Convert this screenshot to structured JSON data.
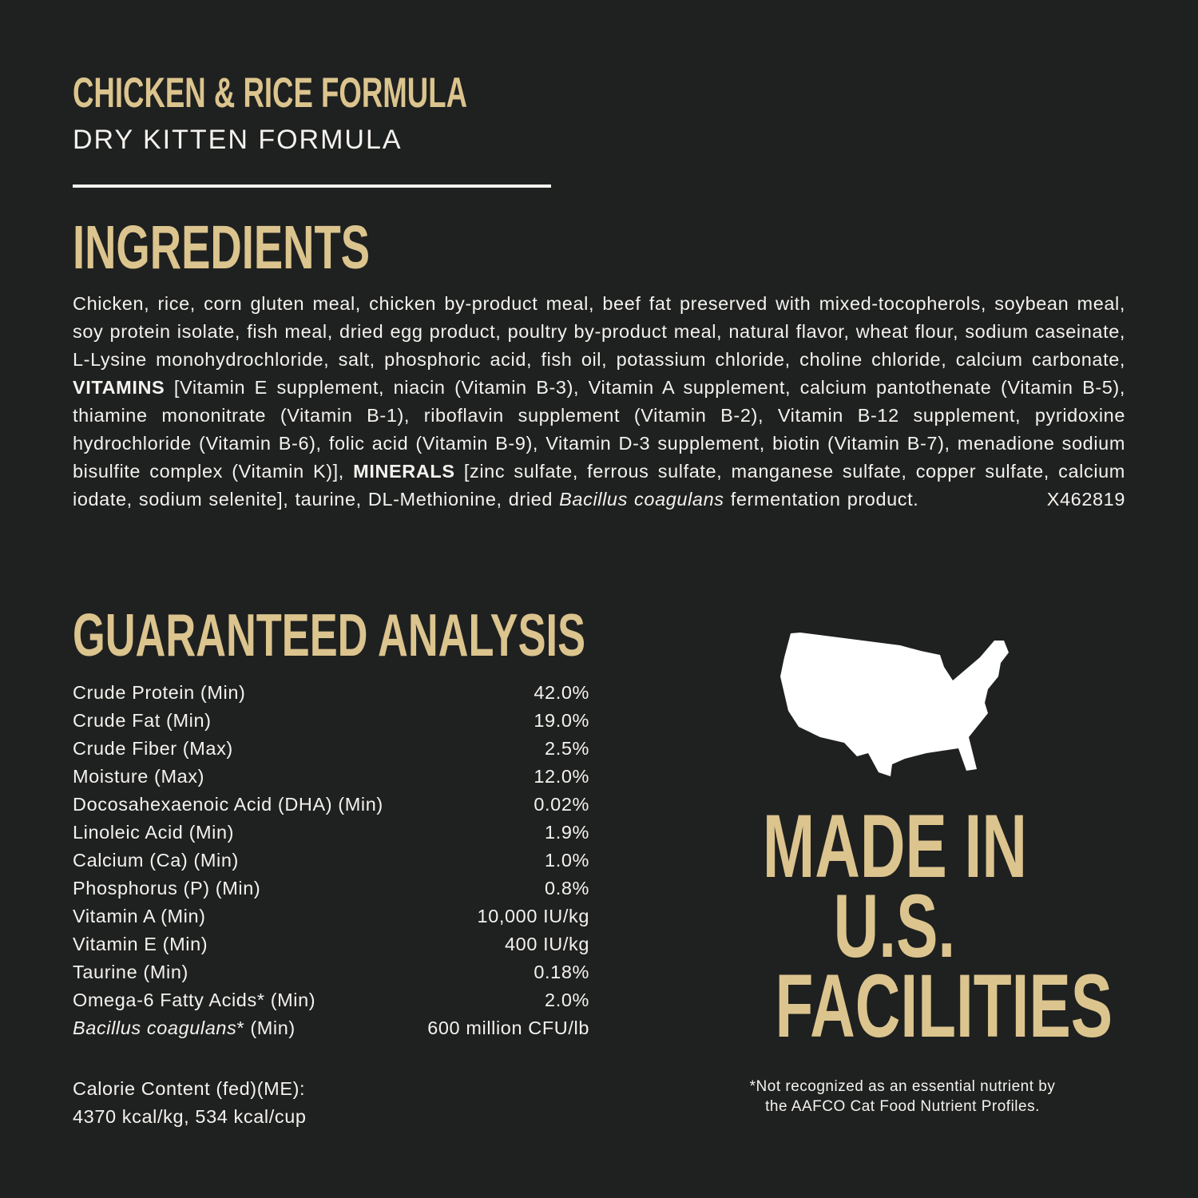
{
  "header": {
    "title": "CHICKEN & RICE FORMULA",
    "subtitle": "DRY KITTEN FORMULA"
  },
  "ingredients": {
    "heading": "INGREDIENTS",
    "text_1": "Chicken, rice, corn gluten meal, chicken by-product meal, beef fat preserved with mixed-tocopherols, soybean meal, soy protein isolate, fish meal, dried egg product, poultry by-product meal, natural flavor, wheat flour, sodium caseinate, L-Lysine monohydrochloride, salt, phosphoric acid, fish oil, potassium chloride, choline chloride, calcium carbonate, ",
    "vitamins_label": "VITAMINS",
    "text_2": " [Vitamin E supplement, niacin (Vitamin B-3), Vitamin A supplement, calcium pantothenate (Vitamin B-5), thiamine mononitrate (Vitamin B-1), riboflavin supplement (Vitamin B-2), Vitamin B-12 supplement, pyridoxine hydrochloride (Vitamin B-6), folic acid (Vitamin B-9), Vitamin D-3 supplement, biotin (Vitamin B-7), menadione sodium bisulfite complex (Vitamin K)], ",
    "minerals_label": "MINERALS",
    "text_3": " [zinc sulfate, ferrous sulfate, manganese sulfate, copper sulfate, calcium iodate, sodium selenite], taurine, DL-Methionine, dried ",
    "italic_name": "Bacillus coagulans",
    "text_4": " fermentation product.",
    "code": "X462819"
  },
  "analysis": {
    "heading": "GUARANTEED ANALYSIS",
    "rows": [
      {
        "label": "Crude Protein (Min)",
        "value": "42.0%"
      },
      {
        "label": "Crude Fat (Min)",
        "value": "19.0%"
      },
      {
        "label": "Crude Fiber (Max)",
        "value": "2.5%"
      },
      {
        "label": "Moisture (Max)",
        "value": "12.0%"
      },
      {
        "label": "Docosahexaenoic Acid (DHA) (Min)",
        "value": "0.02%"
      },
      {
        "label": "Linoleic Acid (Min)",
        "value": "1.9%"
      },
      {
        "label": "Calcium (Ca) (Min)",
        "value": "1.0%"
      },
      {
        "label": "Phosphorus (P) (Min)",
        "value": "0.8%"
      },
      {
        "label": "Vitamin A (Min)",
        "value": "10,000 IU/kg"
      },
      {
        "label": "Vitamin E (Min)",
        "value": "400 IU/kg"
      },
      {
        "label": "Taurine (Min)",
        "value": "0.18%"
      },
      {
        "label": "Omega-6 Fatty Acids* (Min)",
        "value": "2.0%"
      }
    ],
    "last_row": {
      "label_italic": "Bacillus coagulans",
      "label_rest": "* (Min)",
      "value": "600 million CFU/lb"
    },
    "calorie_label": "Calorie Content (fed)(ME):",
    "calorie_value": "4370 kcal/kg, 534 kcal/cup"
  },
  "badge": {
    "icon": "usa-map-icon",
    "line_1": "MADE IN",
    "line_2": "U.S.",
    "line_3": "FACILITIES",
    "footnote_1": "*Not recognized as an essential nutrient by",
    "footnote_2": "the AAFCO Cat Food Nutrient Profiles."
  },
  "colors": {
    "background": "#1f2120",
    "accent": "#dcc48e",
    "text": "#f4f2ee"
  }
}
